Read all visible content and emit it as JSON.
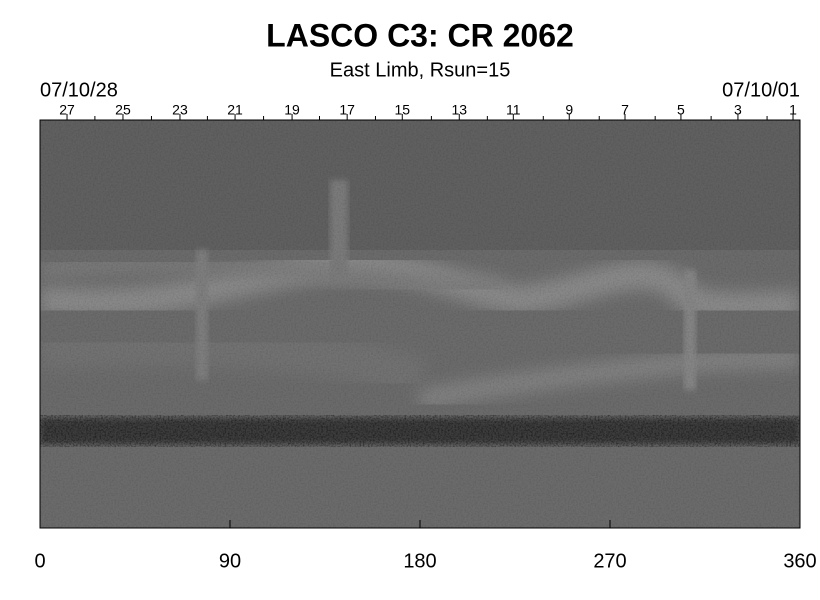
{
  "chart_data": {
    "type": "image",
    "title": "LASCO C3: CR 2062",
    "subtitle": "East Limb, Rsun=15",
    "start_label": "07/10/28",
    "end_label": "07/10/01",
    "xlim": [
      0,
      360
    ],
    "xticks": [
      0,
      90,
      180,
      270,
      360
    ],
    "top_ticks": [
      {
        "value": 12.8,
        "label": "27"
      },
      {
        "value": 39.3,
        "label": "25"
      },
      {
        "value": 66.3,
        "label": "23"
      },
      {
        "value": 92.4,
        "label": "21"
      },
      {
        "value": 119.4,
        "label": "19"
      },
      {
        "value": 145.5,
        "label": "17"
      },
      {
        "value": 171.6,
        "label": "15"
      },
      {
        "value": 198.6,
        "label": "13"
      },
      {
        "value": 224.2,
        "label": "11"
      },
      {
        "value": 250.7,
        "label": "9"
      },
      {
        "value": 277.1,
        "label": "7"
      },
      {
        "value": 303.6,
        "label": "5"
      },
      {
        "value": 330.6,
        "label": "3"
      },
      {
        "value": 356.7,
        "label": "1"
      }
    ],
    "top_minor_ticks": [
      26,
      52.8,
      79.3,
      105.9,
      132.4,
      158.9,
      185.4,
      211.9,
      238.4,
      264.9,
      291.4,
      317.9,
      344.4
    ]
  }
}
